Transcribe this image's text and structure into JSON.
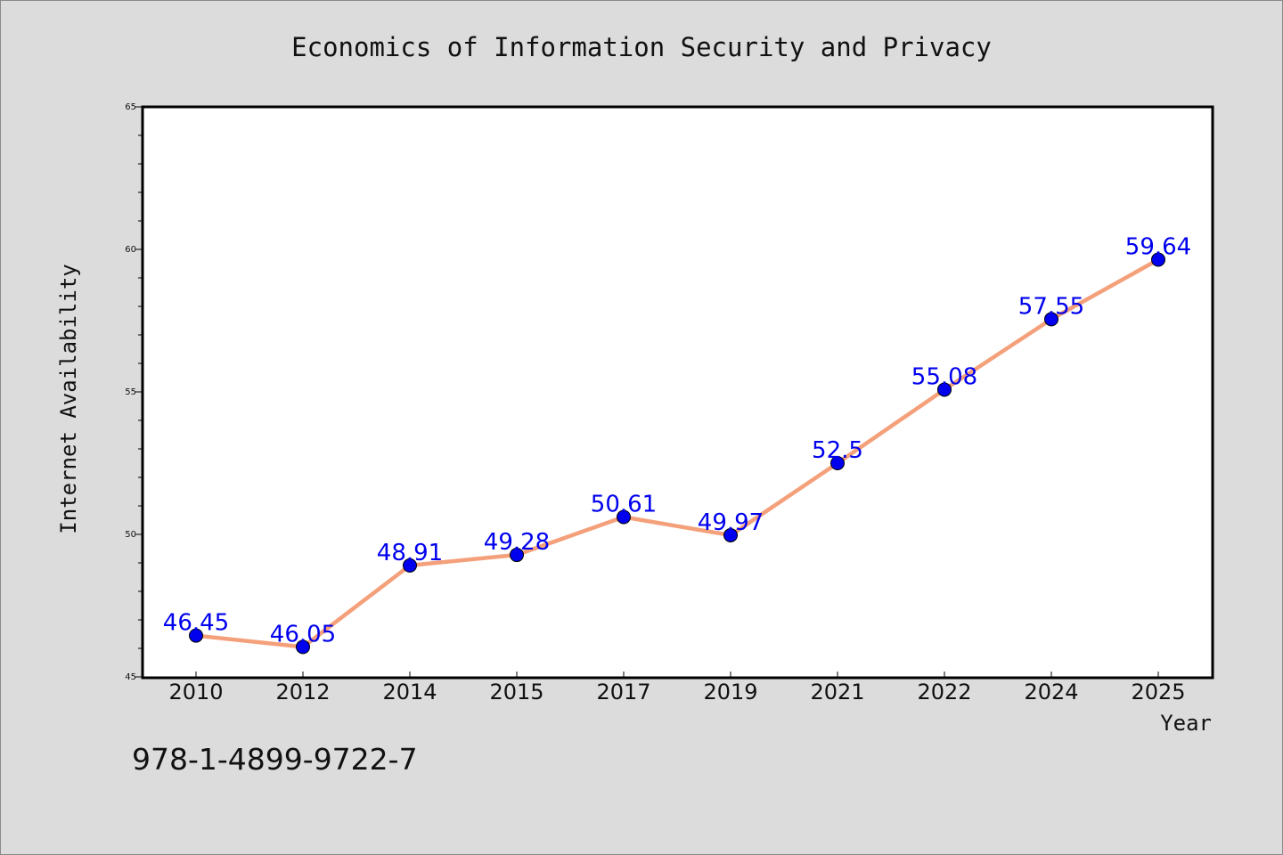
{
  "isbn": "978-1-4899-9722-7",
  "colors": {
    "background": "#dcdcdc",
    "plot_background": "#ffffff",
    "line": "#f4a07a",
    "marker": "#0000ee",
    "label": "#0000ee"
  },
  "chart_data": {
    "type": "line",
    "title": "Economics of Information Security and Privacy",
    "xlabel": "Year",
    "ylabel": "Internet Availability",
    "categories": [
      "2010",
      "2012",
      "2014",
      "2015",
      "2017",
      "2019",
      "2021",
      "2022",
      "2024",
      "2025"
    ],
    "series": [
      {
        "values": [
          46.45,
          46.05,
          48.91,
          49.28,
          50.61,
          49.97,
          52.5,
          55.08,
          57.55,
          59.64
        ],
        "labels": [
          "46.45",
          "46.05",
          "48.91",
          "49.28",
          "50.61",
          "49.97",
          "52.5",
          "55.08",
          "57.55",
          "59.64"
        ]
      }
    ],
    "ylim": [
      45,
      65
    ],
    "yticks": [
      "45",
      "50",
      "55",
      "60",
      "65"
    ],
    "grid": false,
    "legend": "none"
  }
}
